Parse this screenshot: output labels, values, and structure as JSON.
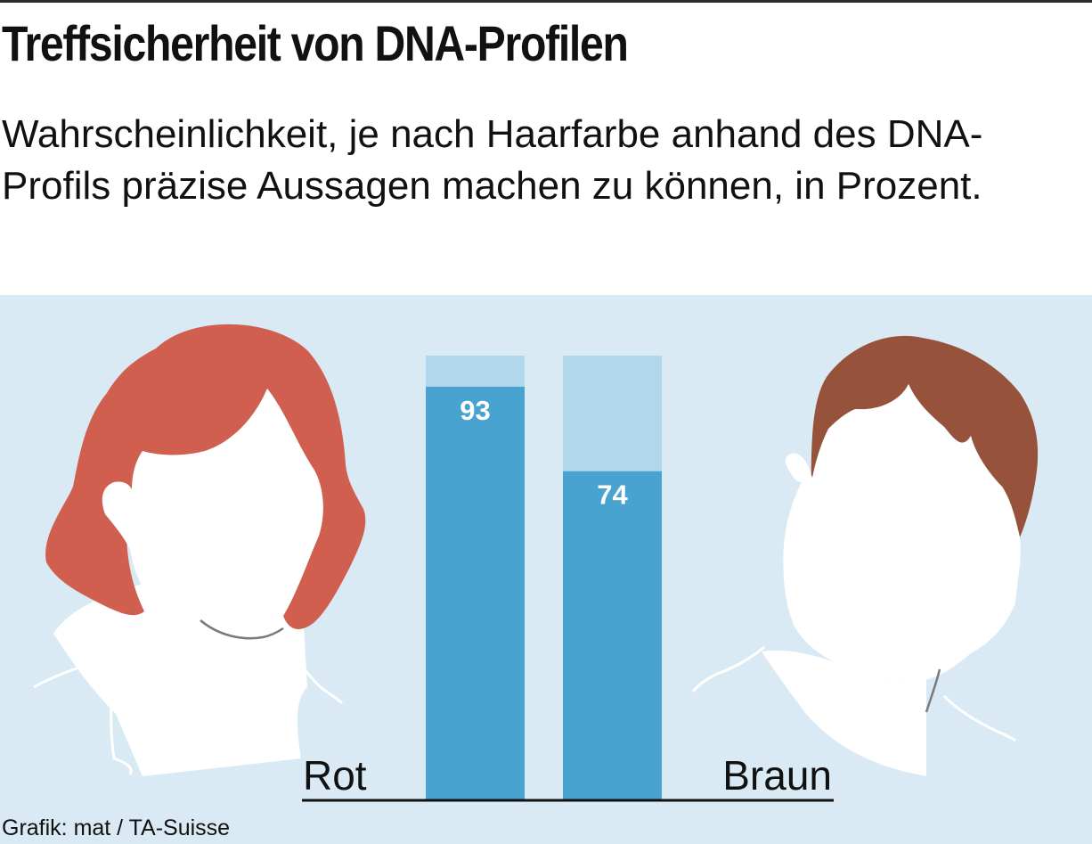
{
  "title": "Treffsicherheit von DNA-Profilen",
  "subtitle": "Wahrscheinlichkeit, je nach Haarfarbe anhand des DNA-Profils präzise Aussagen machen zu können, in Prozent.",
  "source": "Grafik: mat / TA-Suisse",
  "colors": {
    "bar": "#48a3d0",
    "bar_background": "#b3d7ea",
    "panel": "#d9eaf4",
    "hair_red": "#d15f4f",
    "hair_brown": "#96523b"
  },
  "icons": [
    "woman-red-hair-icon",
    "man-brown-hair-icon"
  ],
  "chart_data": {
    "type": "bar",
    "categories": [
      "Rot",
      "Braun"
    ],
    "values": [
      93,
      74
    ],
    "ylim": [
      0,
      100
    ],
    "unit": "Prozent",
    "data_labels": [
      "93",
      "74"
    ]
  }
}
